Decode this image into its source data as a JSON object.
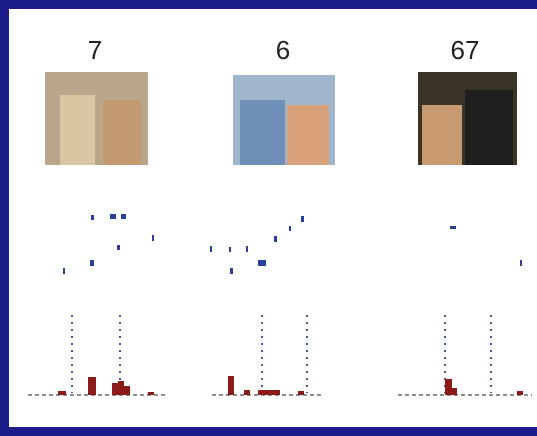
{
  "panels": [
    {
      "label": "7"
    },
    {
      "label": "6"
    },
    {
      "label": "67"
    }
  ]
}
